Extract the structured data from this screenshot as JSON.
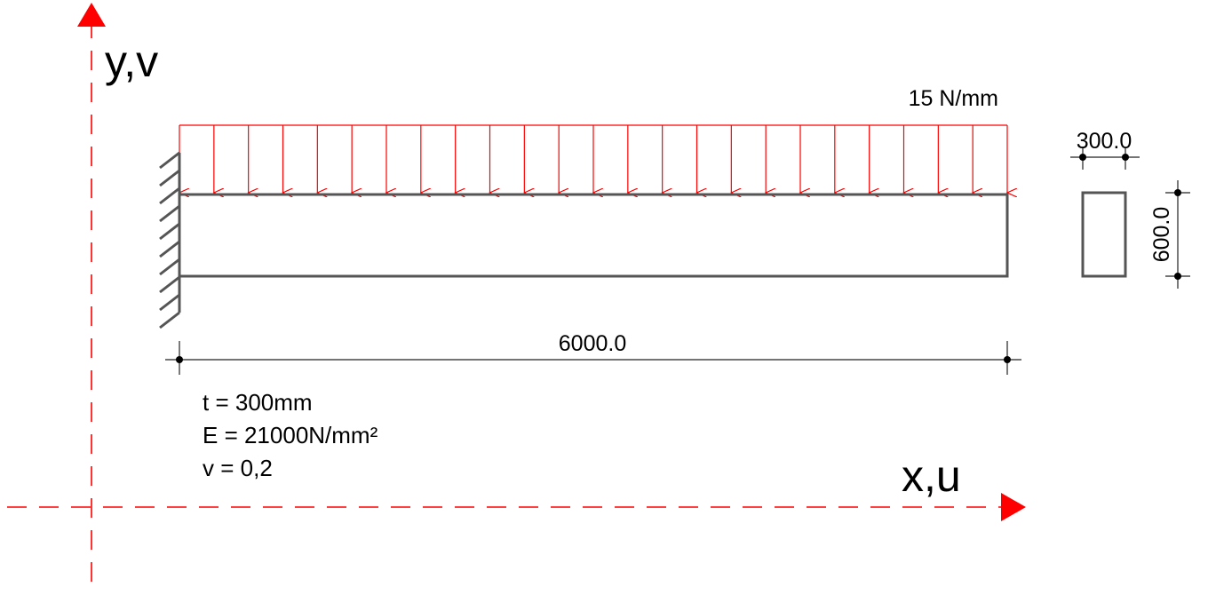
{
  "axes": {
    "y_label": "y,v",
    "x_label": "x,u",
    "color": "#ff0000"
  },
  "load": {
    "label": "15 N/mm",
    "arrow_count": 25,
    "color": "#ff0000"
  },
  "beam": {
    "length_label": "6000.0",
    "color": "#555555"
  },
  "section": {
    "width_label": "300.0",
    "height_label": "600.0"
  },
  "properties": [
    "t = 300mm",
    "E = 21000N/mm²",
    "v = 0,2"
  ]
}
